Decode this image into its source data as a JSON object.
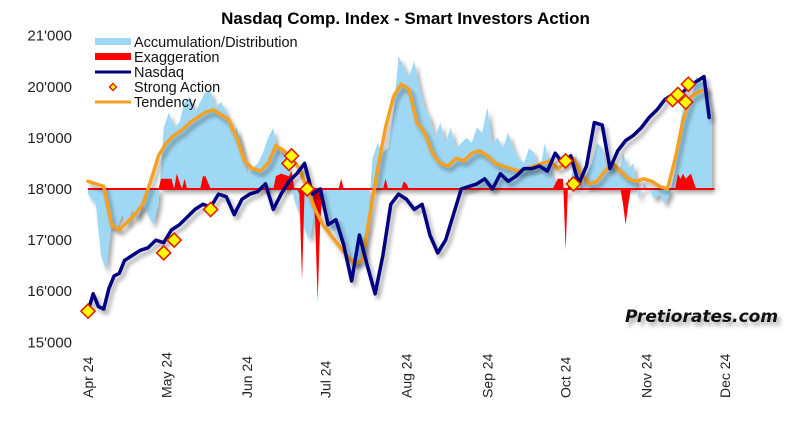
{
  "chart_data": {
    "type": "line",
    "title": "Nasdaq Comp. Index - Smart Investors Action",
    "xlabel": "",
    "ylabel": "",
    "ylim": [
      15000,
      21000
    ],
    "yticks": [
      "15'000",
      "16'000",
      "17'000",
      "18'000",
      "19'000",
      "20'000",
      "21'000"
    ],
    "ytick_values": [
      15000,
      16000,
      17000,
      18000,
      19000,
      20000,
      21000
    ],
    "xticks": [
      "Apr 24",
      "May 24",
      "Jun 24",
      "Jul 24",
      "Aug 24",
      "Sep 24",
      "Oct 24",
      "Nov 24",
      "Dec 24"
    ],
    "xtick_days": [
      0,
      30,
      61,
      91,
      122,
      153,
      183,
      214,
      244
    ],
    "baseline": 18000,
    "legend": {
      "placement": "top-left",
      "entries": [
        "Accumulation/Distribution",
        "Exaggeration",
        "Nasdaq",
        "Strong Action",
        "Tendency"
      ]
    },
    "colors": {
      "accumulation": "#9fd8f5",
      "exaggeration": "#ff0000",
      "nasdaq": "#000080",
      "strong_action_fill": "#ffff00",
      "strong_action_edge": "#e02000",
      "tendency": "#f5a020"
    },
    "series": [
      {
        "name": "Nasdaq",
        "days": [
          0,
          2,
          4,
          6,
          8,
          10,
          12,
          14,
          17,
          20,
          23,
          26,
          29,
          32,
          35,
          38,
          41,
          44,
          47,
          50,
          53,
          56,
          59,
          62,
          65,
          68,
          71,
          74,
          77,
          80,
          83,
          86,
          89,
          92,
          95,
          98,
          101,
          104,
          107,
          110,
          113,
          116,
          119,
          122,
          125,
          128,
          131,
          134,
          137,
          140,
          143,
          146,
          149,
          152,
          155,
          158,
          161,
          164,
          167,
          170,
          173,
          176,
          179,
          182,
          185,
          188,
          191,
          194,
          197,
          200,
          203,
          206,
          209,
          212,
          215,
          218,
          221,
          224,
          227,
          230,
          233,
          236,
          238
        ],
        "values": [
          15610,
          15950,
          15700,
          15650,
          16050,
          16300,
          16350,
          16600,
          16700,
          16800,
          16850,
          17000,
          16950,
          17200,
          17300,
          17450,
          17600,
          17700,
          17650,
          17900,
          17850,
          17500,
          17800,
          17900,
          17950,
          18100,
          17600,
          17900,
          18150,
          18300,
          18500,
          17900,
          18000,
          17300,
          17400,
          16900,
          16200,
          17100,
          16500,
          15950,
          16700,
          17700,
          17900,
          17800,
          17600,
          17700,
          17100,
          16750,
          17000,
          17500,
          18000,
          18050,
          18100,
          18200,
          18000,
          18300,
          18150,
          18250,
          18400,
          18400,
          18450,
          18350,
          18700,
          18500,
          18650,
          18100,
          18450,
          19300,
          19250,
          18400,
          18750,
          18950,
          19050,
          19200,
          19400,
          19550,
          19750,
          19850,
          19850,
          20000,
          20100,
          20200,
          19400
        ]
      },
      {
        "name": "Tendency",
        "days": [
          0,
          3,
          6,
          9,
          12,
          15,
          18,
          21,
          24,
          27,
          30,
          33,
          36,
          39,
          42,
          45,
          48,
          51,
          54,
          57,
          60,
          63,
          66,
          69,
          72,
          75,
          78,
          81,
          84,
          87,
          90,
          93,
          96,
          99,
          102,
          105,
          108,
          111,
          114,
          117,
          120,
          123,
          126,
          129,
          132,
          135,
          138,
          141,
          144,
          147,
          150,
          153,
          156,
          159,
          162,
          165,
          168,
          171,
          174,
          177,
          180,
          183,
          186,
          189,
          192,
          195,
          198,
          201,
          204,
          207,
          210,
          213,
          216,
          219,
          222,
          225,
          228,
          231,
          234,
          237
        ],
        "values": [
          18150,
          18100,
          18050,
          17300,
          17200,
          17350,
          17500,
          17700,
          18150,
          18650,
          18900,
          19050,
          19150,
          19300,
          19400,
          19500,
          19550,
          19450,
          19350,
          19000,
          18550,
          18400,
          18350,
          18500,
          18850,
          18750,
          18600,
          18400,
          18000,
          17600,
          17300,
          17100,
          16900,
          16700,
          16550,
          16600,
          17500,
          18400,
          19200,
          19800,
          20050,
          19950,
          19300,
          19100,
          18700,
          18500,
          18450,
          18600,
          18550,
          18700,
          18750,
          18650,
          18500,
          18450,
          18400,
          18350,
          18400,
          18450,
          18500,
          18550,
          18400,
          18500,
          18600,
          18300,
          18100,
          18150,
          18350,
          18500,
          18350,
          18200,
          18150,
          18200,
          18150,
          18050,
          18000,
          18600,
          19350,
          19800,
          19900,
          19950
        ]
      },
      {
        "name": "Accumulation/Distribution",
        "days": [
          0,
          3,
          5,
          7,
          9,
          11,
          13,
          15,
          17,
          19,
          21,
          23,
          25,
          27,
          29,
          31,
          33,
          35,
          37,
          39,
          41,
          43,
          45,
          47,
          49,
          51,
          53,
          55,
          57,
          59,
          61,
          63,
          65,
          67,
          69,
          71,
          73,
          75,
          77,
          79,
          81,
          83,
          85,
          87,
          89,
          91,
          93,
          95,
          97,
          99,
          101,
          103,
          105,
          107,
          109,
          111,
          113,
          115,
          117,
          119,
          121,
          123,
          125,
          127,
          129,
          131,
          133,
          135,
          137,
          139,
          141,
          143,
          145,
          147,
          149,
          151,
          153,
          155,
          157,
          159,
          161,
          163,
          165,
          167,
          169,
          171,
          173,
          175,
          177,
          179,
          181,
          183,
          185,
          187,
          189,
          191,
          193,
          195,
          197,
          199,
          201,
          203,
          205,
          207,
          209,
          211,
          213,
          215,
          217,
          219,
          221,
          223,
          225,
          227,
          229,
          231,
          233,
          235,
          237,
          239
        ],
        "values": [
          17900,
          17700,
          16700,
          16400,
          17300,
          17200,
          17500,
          17300,
          17600,
          17400,
          17700,
          17500,
          17300,
          17700,
          19200,
          19500,
          19200,
          19300,
          19700,
          19800,
          19500,
          19700,
          19900,
          19900,
          19600,
          19700,
          19500,
          19000,
          19200,
          18800,
          18300,
          18400,
          18500,
          18700,
          19000,
          19200,
          18600,
          18800,
          18400,
          17800,
          17500,
          17200,
          17000,
          17600,
          17800,
          17500,
          17300,
          17100,
          17000,
          16900,
          16600,
          16500,
          16700,
          17200,
          18600,
          18900,
          18700,
          18800,
          19500,
          20600,
          20400,
          20200,
          20500,
          20000,
          19600,
          19400,
          19000,
          19300,
          18900,
          19200,
          18800,
          18900,
          19000,
          18900,
          19200,
          19100,
          19600,
          18900,
          19000,
          18800,
          19100,
          18800,
          18600,
          18500,
          18800,
          18700,
          18300,
          18900,
          18400,
          18100,
          18200,
          17800,
          18200,
          18700,
          17900,
          18300,
          18500,
          18900,
          18800,
          18300,
          18500,
          18200,
          18700,
          18400,
          18500,
          17800,
          18100,
          18000,
          17800,
          17900,
          17700,
          17900,
          18400,
          19300,
          19900,
          19700,
          20200,
          20100,
          20000,
          19500
        ]
      },
      {
        "name": "Exaggeration",
        "days": [
          0,
          27,
          28,
          30,
          32,
          33,
          34,
          36,
          37,
          38,
          43,
          44,
          45,
          47,
          48,
          71,
          72,
          74,
          77,
          78,
          79,
          80,
          81,
          82,
          83,
          86,
          87,
          88,
          89,
          90,
          91,
          96,
          97,
          98,
          113,
          114,
          115,
          120,
          121,
          122,
          123,
          178,
          180,
          181,
          182,
          183,
          184,
          185,
          186,
          204,
          205,
          206,
          207,
          208,
          225,
          226,
          227,
          228,
          229,
          231,
          232,
          233,
          240
        ],
        "values": [
          18000,
          18000,
          18200,
          18200,
          18200,
          18000,
          18300,
          18000,
          18200,
          18000,
          18000,
          18250,
          18250,
          18000,
          18000,
          18000,
          18250,
          18300,
          18250,
          18350,
          18000,
          18000,
          17900,
          16200,
          18000,
          18000,
          17400,
          15800,
          17400,
          18000,
          18000,
          18000,
          18200,
          18000,
          18000,
          18200,
          18000,
          18000,
          18150,
          18100,
          18000,
          18000,
          18200,
          18200,
          18200,
          16800,
          18200,
          18100,
          18000,
          18000,
          17700,
          17300,
          17700,
          18000,
          18000,
          18300,
          18200,
          18300,
          18200,
          18300,
          18150,
          18000,
          18000
        ]
      }
    ],
    "strong_action": {
      "days": [
        0,
        29,
        33,
        47,
        77,
        78,
        84,
        183,
        186,
        224,
        226,
        229,
        230
      ],
      "values": [
        15610,
        16750,
        17000,
        17600,
        18500,
        18650,
        18000,
        18550,
        18100,
        19750,
        19850,
        19700,
        20050
      ]
    }
  },
  "branding": "Pretiorates.com"
}
